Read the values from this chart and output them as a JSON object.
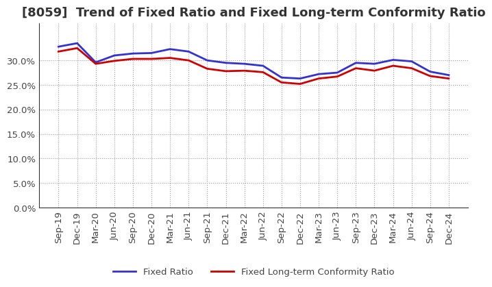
{
  "title": "[8059]  Trend of Fixed Ratio and Fixed Long-term Conformity Ratio",
  "x_labels": [
    "Sep-19",
    "Dec-19",
    "Mar-20",
    "Jun-20",
    "Sep-20",
    "Dec-20",
    "Mar-21",
    "Jun-21",
    "Sep-21",
    "Dec-21",
    "Mar-22",
    "Jun-22",
    "Sep-22",
    "Dec-22",
    "Mar-23",
    "Jun-23",
    "Sep-23",
    "Dec-23",
    "Mar-24",
    "Jun-24",
    "Sep-24",
    "Dec-24"
  ],
  "fixed_ratio": [
    0.328,
    0.335,
    0.296,
    0.31,
    0.314,
    0.315,
    0.323,
    0.318,
    0.3,
    0.295,
    0.293,
    0.289,
    0.265,
    0.263,
    0.272,
    0.275,
    0.295,
    0.293,
    0.301,
    0.298,
    0.277,
    0.27
  ],
  "fixed_lt_ratio": [
    0.318,
    0.325,
    0.293,
    0.299,
    0.303,
    0.303,
    0.305,
    0.3,
    0.283,
    0.278,
    0.279,
    0.276,
    0.255,
    0.252,
    0.263,
    0.267,
    0.284,
    0.279,
    0.289,
    0.284,
    0.268,
    0.263
  ],
  "fixed_ratio_color": "#3333cc",
  "fixed_lt_ratio_color": "#cc0000",
  "background_color": "#ffffff",
  "plot_bg_color": "#ffffff",
  "ylim": [
    0.0,
    0.375
  ],
  "yticks": [
    0.0,
    0.05,
    0.1,
    0.15,
    0.2,
    0.25,
    0.3
  ],
  "grid_color": "#999999",
  "legend_fixed_ratio": "Fixed Ratio",
  "legend_fixed_lt_ratio": "Fixed Long-term Conformity Ratio",
  "title_fontsize": 13,
  "tick_label_color": "#444444",
  "tick_fontsize": 9.5
}
